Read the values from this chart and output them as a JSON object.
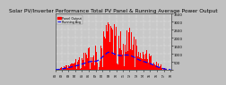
{
  "title": "Solar PV/Inverter Performance Total PV Panel & Running Average Power Output",
  "ylim": [
    0,
    3500
  ],
  "num_bars": 200,
  "bar_color": "#ff0000",
  "avg_color": "#0000ff",
  "fig_bg": "#c0c0c0",
  "plot_bg": "#c8c8c8",
  "grid_color": "#ffffff",
  "title_fontsize": 4.2,
  "axis_fontsize": 2.8,
  "ytick_labels": [
    "",
    "500",
    "1000",
    "1500",
    "2000",
    "2500",
    "3000",
    "3500"
  ],
  "ytick_vals": [
    0,
    500,
    1000,
    1500,
    2000,
    2500,
    3000,
    3500
  ],
  "legend_labels": [
    "Panel Output",
    "Running Avg"
  ]
}
